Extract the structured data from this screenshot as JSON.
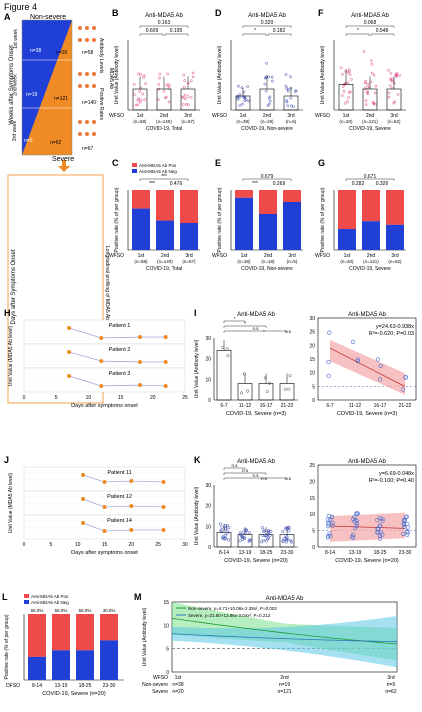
{
  "figure_title": "Figure 4",
  "panelA": {
    "letter": "A",
    "top_label": "Non-severe",
    "bottom_label": "Severe",
    "y_axis": "Weeks after Symptoms Onset",
    "weeks": [
      "1st week",
      "2nd week",
      "3rd week"
    ],
    "left_n": [
      "n=38",
      "n=19",
      "n=5"
    ],
    "right_n": [
      "n=20",
      "n=121",
      "n=62"
    ],
    "side_label_1": "Antibody Levels",
    "side_label_2": "MDA5 Ab",
    "side_label_3": "Positive Rates",
    "right_n_top": "n=58",
    "right_n_mid": "n=140",
    "right_n_bot": "n=67",
    "days_label": "Days after Symptoms Onset",
    "long_label": "Longitudinal profiling of MDA5 Ab"
  },
  "colors": {
    "blue": "#1f3fd6",
    "red": "#ef4a4a",
    "orange": "#f08a24",
    "pink": "#e0478a",
    "navy": "#3b4bb0"
  },
  "panelB": {
    "letter": "B",
    "title": "Anti-MDA5 Ab",
    "ylabel": "Unit Value (Antibody level)",
    "xlabel": "COVID-19, Total",
    "row_label": "WFSO",
    "cats": [
      "1st",
      "2nd",
      "3rd"
    ],
    "ns": [
      "(n=58)",
      "(n=140)",
      "(n=67)"
    ],
    "pvals": [
      "0.163",
      "0.609",
      "0.195"
    ],
    "chart_data": {
      "type": "scatter",
      "categories": [
        "1st",
        "2nd",
        "3rd"
      ],
      "means": [
        9,
        9,
        9
      ],
      "ylim": [
        0,
        30
      ]
    }
  },
  "panelC": {
    "letter": "C",
    "legend": [
      "Anti-MDA5 Ab Pos",
      "Anti-MDA5 Ab Neg"
    ],
    "ylabel": "Positive rate (% of per group)",
    "xlabel": "COVID-19, Total",
    "row_label": "WFSO",
    "cats": [
      "1st",
      "2nd",
      "3rd"
    ],
    "ns": [
      "(n=58)",
      "(n=140)",
      "(n=67)"
    ],
    "sig": [
      "***",
      "***",
      "0.476"
    ],
    "chart_data": {
      "type": "bar",
      "categories": [
        "1st",
        "2nd",
        "3rd"
      ],
      "neg_percent": [
        69,
        49,
        45
      ],
      "ylim": [
        0,
        100
      ]
    }
  },
  "panelD": {
    "letter": "D",
    "title": "Anti-MDA5 Ab",
    "ylabel": "Unit Value (Antibody level)",
    "xlabel": "COVID-19, Non-severe",
    "row_label": "WFSO",
    "cats": [
      "1st",
      "2nd",
      "3rd"
    ],
    "ns": [
      "(n=38)",
      "(n=19)",
      "(n=5)"
    ],
    "pvals": [
      "0.320",
      "*",
      "0.182"
    ],
    "chart_data": {
      "type": "scatter",
      "categories": [
        "1st",
        "2nd",
        "3rd"
      ],
      "means": [
        6,
        9,
        6
      ],
      "ylim": [
        0,
        30
      ]
    }
  },
  "panelE": {
    "letter": "E",
    "ylabel": "Positive rate (% of per group)",
    "xlabel": "COVID-19, Non-severe",
    "row_label": "WFSO",
    "cats": [
      "1st",
      "2nd",
      "3rd"
    ],
    "ns": [
      "(n=38)",
      "(n=19)",
      "(n=5)"
    ],
    "sig": [
      "0.679",
      "***",
      "0.269"
    ],
    "chart_data": {
      "type": "bar",
      "categories": [
        "1st",
        "2nd",
        "3rd"
      ],
      "neg_percent": [
        87,
        60,
        80
      ],
      "ylim": [
        0,
        100
      ]
    }
  },
  "panelF": {
    "letter": "F",
    "title": "Anti-MDA5 Ab",
    "ylabel": "Unit Value (Antibody level)",
    "xlabel": "COVID-19, Severe",
    "row_label": "WFSO",
    "cats": [
      "1st",
      "2nd",
      "3rd"
    ],
    "ns": [
      "(n=20)",
      "(n=121)",
      "(n=62)"
    ],
    "pvals": [
      "0.068",
      "*",
      "0.548"
    ],
    "chart_data": {
      "type": "scatter",
      "categories": [
        "1st",
        "2nd",
        "3rd"
      ],
      "means": [
        11,
        9,
        9
      ],
      "ylim": [
        0,
        30
      ]
    }
  },
  "panelG": {
    "letter": "G",
    "ylabel": "Positive rate (% of per group)",
    "xlabel": "COVID-19, Severe",
    "row_label": "WFSO",
    "cats": [
      "1st",
      "2nd",
      "3rd"
    ],
    "ns": [
      "(n=20)",
      "(n=121)",
      "(n=62)"
    ],
    "sig": [
      "0.671",
      "0.282",
      "0.326"
    ],
    "chart_data": {
      "type": "bar",
      "categories": [
        "1st",
        "2nd",
        "3rd"
      ],
      "neg_percent": [
        35,
        48,
        42
      ],
      "ylim": [
        0,
        100
      ]
    }
  },
  "panelH": {
    "letter": "H",
    "ylabel": "Unit Value (MDA5 Ab level)",
    "xlabel": "Days after symptoms onset",
    "patients": [
      "Patient 1",
      "Patient 2",
      "Patient 3"
    ],
    "ticks": [
      "0",
      "5",
      "10",
      "15",
      "20",
      "25"
    ],
    "chart_data": {
      "type": "line",
      "days": [
        7,
        12,
        18,
        22
      ],
      "series": [
        {
          "name": "Patient 1",
          "values": [
            0.8,
            0.3,
            0.35,
            0.35
          ]
        },
        {
          "name": "Patient 2",
          "values": [
            0.8,
            0.35,
            0.3,
            0.3
          ]
        },
        {
          "name": "Patient 3",
          "values": [
            0.8,
            0.3,
            0.35,
            0.3
          ]
        }
      ]
    }
  },
  "panelI": {
    "letter": "I",
    "title": "Anti-MDA5 Ab",
    "ylabel": "Unit Value (Antibody level)",
    "xlabel": "COVID-19, Severe (n=3)",
    "cats": [
      "6-7",
      "11-12",
      "16-17",
      "21-22"
    ],
    "sig": [
      "*",
      "*",
      "n.s",
      "*",
      "n.s",
      "n.s"
    ],
    "yticks": [
      "0",
      "10",
      "20",
      "30"
    ],
    "chart_data": {
      "type": "bar",
      "categories": [
        "6-7",
        "11-12",
        "16-17",
        "21-22"
      ],
      "values": [
        24,
        8,
        8,
        8
      ],
      "ylim": [
        0,
        30
      ]
    }
  },
  "panelI2": {
    "title": "Anti-MDA5 Ab",
    "equation": "y=24.63-0.938x",
    "stats": "R²=-0.620; P=0.03",
    "xlabel": "COVID-19, Severe (n=3)",
    "cats": [
      "6-7",
      "11-12",
      "16-17",
      "21-22"
    ],
    "yticks": [
      "0",
      "5",
      "10",
      "15",
      "20",
      "25",
      "30"
    ],
    "chart_data": {
      "type": "scatter",
      "intercept": 24.63,
      "slope": -0.938,
      "ylim": [
        0,
        30
      ]
    }
  },
  "panelJ": {
    "letter": "J",
    "ylabel": "Unit Value (MDA5 Ab level)",
    "xlabel": "Days after symptoms onset",
    "patients": [
      "Patient 11",
      "Patient 12",
      "Patient 14"
    ],
    "ticks": [
      "0",
      "5",
      "10",
      "15",
      "20",
      "25",
      "30"
    ],
    "chart_data": {
      "type": "line",
      "days": [
        11,
        15,
        20,
        26
      ],
      "series": [
        {
          "name": "Patient 11",
          "values": [
            0.8,
            0.45,
            0.5,
            0.45
          ]
        },
        {
          "name": "Patient 12",
          "values": [
            0.8,
            0.4,
            0.45,
            0.4
          ]
        },
        {
          "name": "Patient 14",
          "values": [
            0.8,
            0.4,
            0.45,
            0.45
          ]
        }
      ]
    }
  },
  "panelK": {
    "letter": "K",
    "title": "Anti-MDA5 Ab",
    "ylabel": "Unit Value (Antibody level)",
    "xlabel": "COVID-19, Severe (n=20)",
    "cats": [
      "8-14",
      "13-19",
      "18-25",
      "23-30"
    ],
    "sig": [
      "n.s",
      "n.s",
      "n.s",
      "n.s",
      "n.s",
      "n.s"
    ],
    "yticks": [
      "0",
      "10",
      "20",
      "30"
    ],
    "chart_data": {
      "type": "scatter",
      "categories": [
        "8-14",
        "13-19",
        "18-25",
        "23-30"
      ],
      "means": [
        7,
        6,
        6,
        6
      ],
      "ylim": [
        0,
        30
      ]
    }
  },
  "panelK2": {
    "title": "Anti-MDA5 Ab",
    "equation": "y=6.69-0.048x",
    "stats": "R²=-0.100; P=0.40",
    "xlabel": "COVID-19, Severe (n=20)",
    "cats": [
      "8-14",
      "13-19",
      "18-25",
      "23-30"
    ],
    "yticks": [
      "0",
      "5",
      "10",
      "15",
      "20",
      "25"
    ],
    "chart_data": {
      "type": "scatter",
      "intercept": 6.69,
      "slope": -0.048,
      "ylim": [
        0,
        25
      ]
    }
  },
  "panelL": {
    "letter": "L",
    "legend": [
      "Anti-MDA5 Ab Pos",
      "Anti-MDA5 Ab Neg"
    ],
    "ylabel": "Positive rate (% of per group)",
    "xlabel": "COVID-19, Severe (n=20)",
    "row_label": "DFSO",
    "cats": [
      "8-14",
      "13-19",
      "18-25",
      "23-30"
    ],
    "pct": [
      "65.0%",
      "55.0%",
      "55.0%",
      "40.0%"
    ],
    "chart_data": {
      "type": "bar",
      "categories": [
        "8-14",
        "13-19",
        "18-25",
        "23-30"
      ],
      "neg_percent": [
        35,
        45,
        45,
        60
      ],
      "ylim": [
        0,
        100
      ]
    }
  },
  "panelM": {
    "letter": "M",
    "title": "Anti-MDA5 Ab",
    "ylabel": "Unit Value (Antibody level)",
    "legend": [
      "Non-severe, y=4.71+10.06x-2.39x², P=0.002",
      "Severe, y=21.80+13.86x-3.04x², P=0.212"
    ],
    "row_labels": [
      "WFSO",
      "Non-severe",
      "Severe"
    ],
    "cats": [
      "1st",
      "2nd",
      "3rd"
    ],
    "nonsevere_n": [
      "n=38",
      "n=19",
      "n=5"
    ],
    "severe_n": [
      "n=20",
      "n=121",
      "n=62"
    ],
    "yticks": [
      "0",
      "5",
      "10",
      "15"
    ],
    "chart_data": {
      "type": "line",
      "ylim": [
        0,
        15
      ]
    }
  }
}
